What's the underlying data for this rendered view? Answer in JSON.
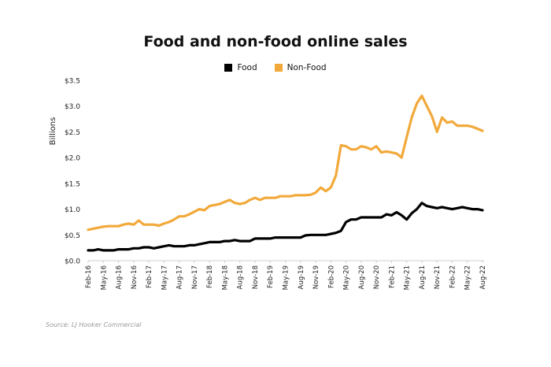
{
  "chart_data": {
    "type": "line",
    "title": "Food and non-food online sales",
    "ylabel": "Billions",
    "xlabel": "",
    "ylim": [
      0,
      3.5
    ],
    "yticks": [
      "$0.0",
      "$0.5",
      "$1.0",
      "$1.5",
      "$2.0",
      "$2.5",
      "$3.0",
      "$3.5"
    ],
    "x_tick_labels": [
      "Feb-16",
      "May-16",
      "Aug-16",
      "Nov-16",
      "Feb-17",
      "May-17",
      "Aug-17",
      "Nov-17",
      "Feb-18",
      "May-18",
      "Aug-18",
      "Nov-18",
      "Feb-19",
      "May-19",
      "Aug-19",
      "Nov-19",
      "Feb-20",
      "May-20",
      "Aug-20",
      "Nov-20",
      "Feb-21",
      "May-21",
      "Aug-21",
      "Nov-21",
      "Feb-22",
      "May-22",
      "Aug-22"
    ],
    "grid": false,
    "legend_position": "top-center",
    "series": [
      {
        "name": "Food",
        "color": "#000000",
        "values": [
          0.2,
          0.2,
          0.22,
          0.2,
          0.2,
          0.2,
          0.22,
          0.22,
          0.22,
          0.24,
          0.24,
          0.26,
          0.26,
          0.24,
          0.26,
          0.28,
          0.3,
          0.28,
          0.28,
          0.28,
          0.3,
          0.3,
          0.32,
          0.34,
          0.36,
          0.36,
          0.36,
          0.38,
          0.38,
          0.4,
          0.38,
          0.38,
          0.38,
          0.43,
          0.43,
          0.43,
          0.43,
          0.45,
          0.45,
          0.45,
          0.45,
          0.45,
          0.45,
          0.49,
          0.5,
          0.5,
          0.5,
          0.5,
          0.52,
          0.54,
          0.58,
          0.75,
          0.8,
          0.8,
          0.84,
          0.84,
          0.84,
          0.84,
          0.84,
          0.9,
          0.88,
          0.94,
          0.88,
          0.8,
          0.92,
          1.0,
          1.12,
          1.06,
          1.04,
          1.02,
          1.04,
          1.02,
          1.0,
          1.02,
          1.04,
          1.02,
          1.0,
          1.0,
          0.98
        ]
      },
      {
        "name": "Non-Food",
        "color": "#F2A93B",
        "values": [
          0.6,
          0.62,
          0.64,
          0.66,
          0.67,
          0.67,
          0.67,
          0.7,
          0.72,
          0.7,
          0.78,
          0.7,
          0.7,
          0.7,
          0.68,
          0.72,
          0.75,
          0.8,
          0.86,
          0.86,
          0.9,
          0.95,
          1.0,
          0.98,
          1.06,
          1.08,
          1.1,
          1.14,
          1.18,
          1.12,
          1.1,
          1.12,
          1.18,
          1.22,
          1.18,
          1.22,
          1.22,
          1.22,
          1.25,
          1.25,
          1.25,
          1.27,
          1.27,
          1.27,
          1.28,
          1.32,
          1.42,
          1.35,
          1.42,
          1.65,
          2.24,
          2.22,
          2.16,
          2.16,
          2.22,
          2.2,
          2.16,
          2.22,
          2.1,
          2.12,
          2.1,
          2.08,
          2.0,
          2.4,
          2.78,
          3.05,
          3.2,
          3.0,
          2.8,
          2.5,
          2.78,
          2.68,
          2.7,
          2.62,
          2.62,
          2.62,
          2.6,
          2.56,
          2.52
        ]
      }
    ]
  },
  "source": "Source: LJ Hooker Commercial"
}
